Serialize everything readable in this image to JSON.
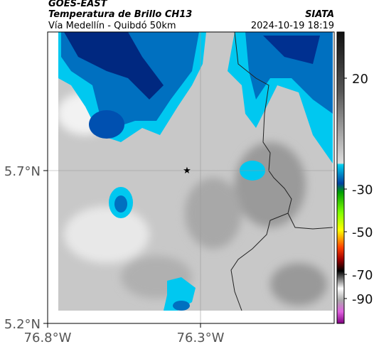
{
  "header": {
    "source": "GOES-EAST",
    "title": "Temperatura de Brillo CH13",
    "subtitle": "Vía Medellín - Quibdó 50km",
    "agency": "SIATA",
    "datetime": "2024-10-19 18:19"
  },
  "map": {
    "lat_ticks": [
      "5.7°N",
      "5.2°N"
    ],
    "lon_ticks": [
      "76.8°W",
      "76.3°W"
    ]
  },
  "colorbar": {
    "ticks": [
      "20",
      "-30",
      "-50",
      "-70",
      "-90"
    ]
  }
}
